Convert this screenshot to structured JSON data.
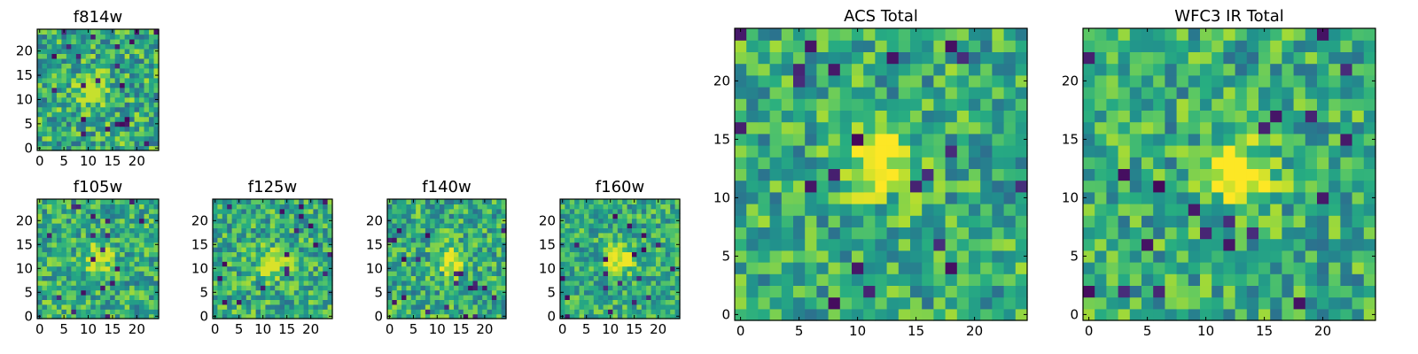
{
  "chart_data": [
    {
      "type": "heatmap",
      "title": "f814w",
      "grid_size": 25,
      "x_ticks": [
        "0",
        "5",
        "10",
        "15",
        "20"
      ],
      "y_ticks": [
        "0",
        "5",
        "10",
        "15",
        "20"
      ],
      "source_center": [
        11,
        12
      ],
      "peak": 0.92,
      "noise": 0.55,
      "colormap": "viridis"
    },
    {
      "type": "heatmap",
      "title": "f105w",
      "grid_size": 25,
      "x_ticks": [
        "0",
        "5",
        "10",
        "15",
        "20"
      ],
      "y_ticks": [
        "0",
        "5",
        "10",
        "15",
        "20"
      ],
      "source_center": [
        12,
        12
      ],
      "peak": 0.95,
      "noise": 0.5,
      "colormap": "viridis"
    },
    {
      "type": "heatmap",
      "title": "f125w",
      "grid_size": 25,
      "x_ticks": [
        "0",
        "5",
        "10",
        "15",
        "20"
      ],
      "y_ticks": [
        "0",
        "5",
        "10",
        "15",
        "20"
      ],
      "source_center": [
        12,
        11
      ],
      "peak": 0.95,
      "noise": 0.5,
      "colormap": "viridis"
    },
    {
      "type": "heatmap",
      "title": "f140w",
      "grid_size": 25,
      "x_ticks": [
        "0",
        "5",
        "10",
        "15",
        "20"
      ],
      "y_ticks": [
        "0",
        "5",
        "10",
        "15",
        "20"
      ],
      "source_center": [
        13,
        12
      ],
      "peak": 0.98,
      "noise": 0.5,
      "colormap": "viridis"
    },
    {
      "type": "heatmap",
      "title": "f160w",
      "grid_size": 25,
      "x_ticks": [
        "0",
        "5",
        "10",
        "15",
        "20"
      ],
      "y_ticks": [
        "0",
        "5",
        "10",
        "15",
        "20"
      ],
      "source_center": [
        12,
        12
      ],
      "peak": 0.98,
      "noise": 0.45,
      "colormap": "viridis"
    },
    {
      "type": "heatmap",
      "title": "ACS Total",
      "grid_size": 25,
      "x_ticks": [
        "0",
        "5",
        "10",
        "15",
        "20"
      ],
      "y_ticks": [
        "0",
        "5",
        "10",
        "15",
        "20"
      ],
      "source_center": [
        12,
        13
      ],
      "peak": 1.0,
      "noise": 0.5,
      "colormap": "viridis"
    },
    {
      "type": "heatmap",
      "title": "WFC3 IR Total",
      "grid_size": 25,
      "x_ticks": [
        "0",
        "5",
        "10",
        "15",
        "20"
      ],
      "y_ticks": [
        "0",
        "5",
        "10",
        "15",
        "20"
      ],
      "source_center": [
        13,
        12
      ],
      "peak": 1.0,
      "noise": 0.5,
      "colormap": "viridis"
    }
  ]
}
